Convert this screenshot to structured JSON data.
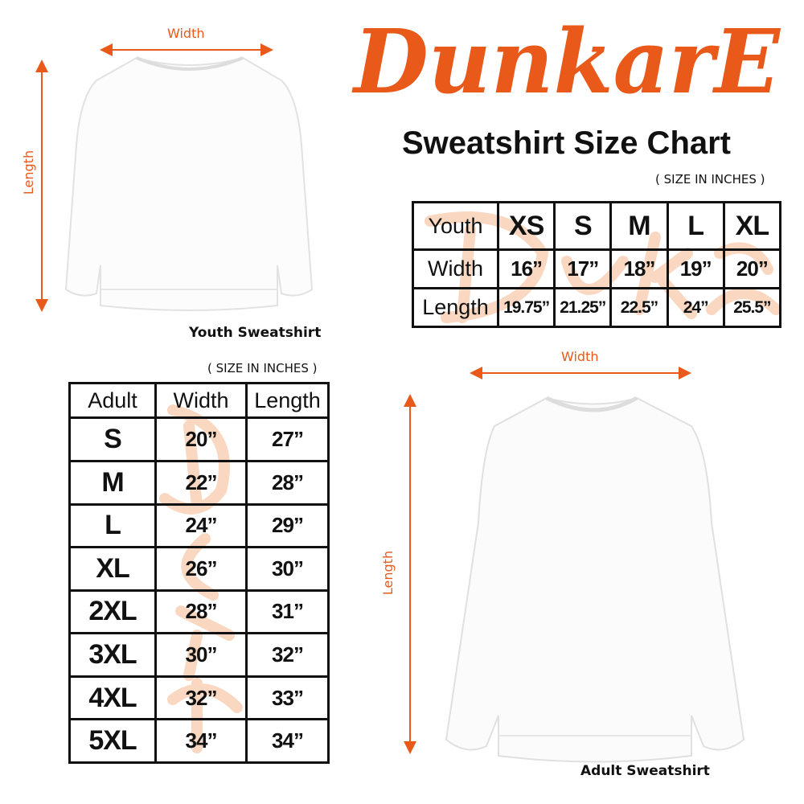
{
  "brand": {
    "logo_text": "DunkarE",
    "color": "#e8591a"
  },
  "title": "Sweatshirt Size Chart",
  "youth": {
    "note": "( SIZE IN INCHES )",
    "header": [
      "Youth",
      "XS",
      "S",
      "M",
      "L",
      "XL"
    ],
    "rows": [
      [
        "Width",
        "16”",
        "17”",
        "18”",
        "19”",
        "20”"
      ],
      [
        "Length",
        "19.75”",
        "21.25”",
        "22.5”",
        "24”",
        "25.5”"
      ]
    ],
    "diagram": {
      "width_label": "Width",
      "length_label": "Length",
      "caption": "Youth Sweatshirt"
    }
  },
  "adult": {
    "note": "( SIZE IN INCHES )",
    "header": [
      "Adult",
      "Width",
      "Length"
    ],
    "rows": [
      [
        "S",
        "20”",
        "27”"
      ],
      [
        "M",
        "22”",
        "28”"
      ],
      [
        "L",
        "24”",
        "29”"
      ],
      [
        "XL",
        "26”",
        "30”"
      ],
      [
        "2XL",
        "28”",
        "31”"
      ],
      [
        "3XL",
        "30”",
        "32”"
      ],
      [
        "4XL",
        "32”",
        "33”"
      ],
      [
        "5XL",
        "34”",
        "34”"
      ]
    ],
    "diagram": {
      "width_label": "Width",
      "length_label": "Length",
      "caption": "Adult Sweatshirt"
    }
  }
}
